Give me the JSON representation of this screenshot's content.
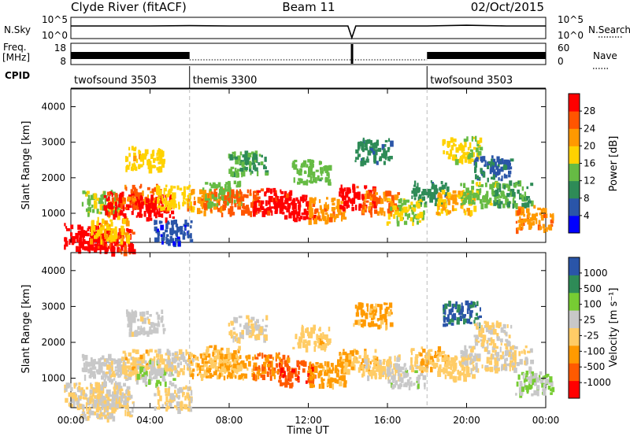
{
  "header": {
    "station": "Clyde River (fitACF)",
    "beam": "Beam 11",
    "date": "02/Oct/2015"
  },
  "strips": {
    "nsky": {
      "label": "N.Sky",
      "left_ticks": [
        "10^5",
        "10^0"
      ],
      "right_ticks": [
        "10^5",
        "10^0"
      ],
      "right_label": "N.Search"
    },
    "freq": {
      "label_top": "Freq.",
      "label_bottom": "[MHz]",
      "left_ticks": [
        "18",
        "8"
      ],
      "right_ticks": [
        "60",
        "0"
      ],
      "right_label": "Nave"
    },
    "cpid": {
      "label": "CPID",
      "segments": [
        {
          "name": "twofsound 3503",
          "start_hour": 0
        },
        {
          "name": "themis 3300",
          "start_hour": 6
        },
        {
          "name": "twofsound 3503",
          "start_hour": 18
        }
      ]
    }
  },
  "x_axis": {
    "label": "Time UT",
    "ticks": [
      "00:00",
      "04:00",
      "08:00",
      "12:00",
      "16:00",
      "20:00",
      "00:00"
    ]
  },
  "power_panel": {
    "ylabel": "Slant Range [km]",
    "yticks": [
      "4000",
      "3000",
      "2000",
      "1000"
    ],
    "colorbar_label": "Power [dB]",
    "colorbar_ticks": [
      "28",
      "24",
      "20",
      "16",
      "12",
      "8",
      "4"
    ]
  },
  "velocity_panel": {
    "ylabel": "Slant Range [km]",
    "yticks": [
      "4000",
      "3000",
      "2000",
      "1000"
    ],
    "colorbar_label": "Velocity [m s⁻¹]",
    "colorbar_ticks": [
      "1000",
      "500",
      "100",
      "25",
      "-25",
      "-100",
      "-500",
      "-1000"
    ]
  },
  "chart_data": [
    {
      "type": "line",
      "xlim": [
        0,
        24
      ],
      "x_unit": "hours UT",
      "series": [
        {
          "name": "N.Sky",
          "x": [
            0,
            2,
            4,
            6,
            8,
            10,
            12,
            14,
            14.2,
            14.4,
            16,
            18,
            20,
            22,
            24
          ],
          "y": [
            1000,
            1000,
            1000,
            1200,
            1000,
            1000,
            1000,
            1000,
            1,
            1000,
            1000,
            1000,
            1500,
            1000,
            1000
          ]
        },
        {
          "name": "N.Search",
          "x": [
            0,
            24
          ],
          "y": [
            1,
            1
          ]
        }
      ],
      "ylim": [
        1,
        100000
      ],
      "yscale": "log"
    },
    {
      "type": "line",
      "xlim": [
        0,
        24
      ],
      "x_unit": "hours UT",
      "series": [
        {
          "name": "Freq",
          "x": [
            0,
            6,
            6.01,
            18,
            18.01,
            24
          ],
          "y": [
            12,
            12,
            10,
            10,
            12,
            12
          ]
        },
        {
          "name": "Nave",
          "x": [
            0,
            6,
            6.01,
            18,
            18.01,
            24
          ],
          "y": [
            16,
            16,
            14,
            14,
            16,
            16
          ]
        }
      ],
      "ylim": [
        8,
        18
      ]
    },
    {
      "type": "heatmap",
      "quantity": "Power",
      "colorscale": [
        "#0000ff",
        "#2a55a8",
        "#2e8b57",
        "#66bb44",
        "#ffd200",
        "#ff9900",
        "#ff5500",
        "#ff0000"
      ],
      "clim": [
        0,
        30
      ],
      "xlim": [
        0,
        24
      ],
      "ylim": [
        180,
        4500
      ],
      "cells": [
        [
          0.6,
          400,
          30
        ],
        [
          1.3,
          300,
          29
        ],
        [
          2.2,
          250,
          26
        ],
        [
          1.9,
          600,
          18
        ],
        [
          1.5,
          1350,
          14
        ],
        [
          2.6,
          1300,
          27
        ],
        [
          3.5,
          1500,
          23
        ],
        [
          4.2,
          1200,
          28
        ],
        [
          5.2,
          1500,
          17
        ],
        [
          6.8,
          1400,
          22
        ],
        [
          7.6,
          1600,
          13
        ],
        [
          8.5,
          1350,
          24
        ],
        [
          10.1,
          1400,
          27
        ],
        [
          11.3,
          1200,
          29
        ],
        [
          12.9,
          1150,
          21
        ],
        [
          14.4,
          1500,
          28
        ],
        [
          15.6,
          1350,
          23
        ],
        [
          16.9,
          1100,
          15
        ],
        [
          18.1,
          1600,
          9
        ],
        [
          19.4,
          1350,
          19
        ],
        [
          20.6,
          1600,
          14
        ],
        [
          22.3,
          1600,
          11
        ],
        [
          23.4,
          900,
          22
        ],
        [
          12.1,
          2200,
          13
        ],
        [
          3.7,
          2600,
          17
        ],
        [
          8.9,
          2450,
          11
        ],
        [
          15.2,
          2800,
          9
        ],
        [
          19.7,
          2850,
          16
        ],
        [
          21.3,
          2300,
          7
        ],
        [
          5.1,
          500,
          5
        ]
      ]
    },
    {
      "type": "heatmap",
      "quantity": "Velocity",
      "colorscale": [
        "#ff0000",
        "#ff5a00",
        "#ff9a00",
        "#ffcc66",
        "#c8c8c8",
        "#77cc33",
        "#2e8b57",
        "#2a55a8"
      ],
      "clim": [
        -1000,
        1000
      ],
      "xlim": [
        0,
        24
      ],
      "ylim": [
        180,
        4500
      ],
      "cells": [
        [
          0.6,
          600,
          0
        ],
        [
          1.3,
          250,
          0
        ],
        [
          2.2,
          250,
          40
        ],
        [
          1.9,
          600,
          0
        ],
        [
          1.5,
          1350,
          120
        ],
        [
          2.6,
          1300,
          30
        ],
        [
          3.5,
          1500,
          -150
        ],
        [
          4.2,
          1200,
          200
        ],
        [
          5.2,
          1500,
          0
        ],
        [
          6.8,
          1400,
          -250
        ],
        [
          7.6,
          1600,
          -200
        ],
        [
          8.5,
          1350,
          -300
        ],
        [
          10.1,
          1400,
          -500
        ],
        [
          11.3,
          1200,
          -700
        ],
        [
          12.9,
          1150,
          -350
        ],
        [
          14.4,
          1500,
          -250
        ],
        [
          15.6,
          1350,
          -80
        ],
        [
          16.9,
          1100,
          150
        ],
        [
          18.1,
          1600,
          -200
        ],
        [
          19.4,
          1350,
          -120
        ],
        [
          20.6,
          1600,
          0
        ],
        [
          22.3,
          1600,
          0
        ],
        [
          23.4,
          900,
          250
        ],
        [
          12.1,
          2200,
          -150
        ],
        [
          3.7,
          2600,
          100
        ],
        [
          8.9,
          2450,
          0
        ],
        [
          15.2,
          2800,
          -300
        ],
        [
          19.7,
          2850,
          800
        ],
        [
          21.3,
          2300,
          0
        ],
        [
          5.1,
          500,
          0
        ]
      ]
    }
  ]
}
